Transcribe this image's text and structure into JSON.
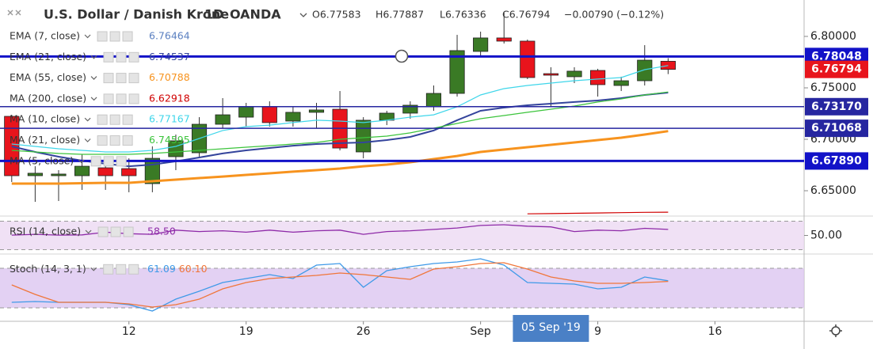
{
  "header": {
    "title": "U.S. Dollar / Danish Krone",
    "interval": "1D",
    "source": "OANDA",
    "open": "O6.77583",
    "high": "H6.77887",
    "low": "L6.76336",
    "close": "C6.76794",
    "change": "−0.00790 (−0.12%)"
  },
  "chart_data": [
    {
      "type": "candlestick",
      "up_color": "#3a7a25",
      "down_color": "#e8141c",
      "open": [
        6.7223,
        6.6646,
        6.6646,
        6.6646,
        6.6723,
        6.6715,
        6.6569,
        6.6831,
        6.6869,
        6.7146,
        6.7215,
        6.7315,
        6.7177,
        6.7262,
        6.7292,
        6.6877,
        6.7185,
        6.7254,
        6.7315,
        6.7446,
        6.7854,
        6.7985,
        6.7954,
        6.7638,
        6.7608,
        6.7669,
        6.7523,
        6.7569,
        6.77583
      ],
      "high": [
        6.7238,
        6.6738,
        6.67,
        6.6854,
        6.6815,
        6.6815,
        6.6931,
        6.7046,
        6.7215,
        6.74,
        6.7354,
        6.7369,
        6.7315,
        6.7354,
        6.7469,
        6.7215,
        6.7277,
        6.7369,
        6.7523,
        6.8015,
        6.8046,
        6.8231,
        6.7969,
        6.77,
        6.77,
        6.7685,
        6.7608,
        6.7915,
        6.77887
      ],
      "low": [
        6.6585,
        6.6392,
        6.64,
        6.6508,
        6.6508,
        6.6485,
        6.6485,
        6.67,
        6.6831,
        6.7108,
        6.7123,
        6.7123,
        6.7123,
        6.7108,
        6.6892,
        6.6815,
        6.7138,
        6.72,
        6.7277,
        6.7415,
        6.7815,
        6.7931,
        6.7585,
        6.7315,
        6.7546,
        6.7415,
        6.7469,
        6.7523,
        6.76336
      ],
      "close": [
        6.6646,
        6.667,
        6.6662,
        6.6738,
        6.6646,
        6.6646,
        6.6815,
        6.6985,
        6.7146,
        6.7238,
        6.7315,
        6.7162,
        6.7262,
        6.7285,
        6.6915,
        6.7185,
        6.7254,
        6.7331,
        6.7446,
        6.7862,
        6.7985,
        6.7954,
        6.76,
        6.7623,
        6.7662,
        6.7531,
        6.7569,
        6.7769,
        6.76794
      ],
      "ylim": [
        6.62615,
        6.83538
      ],
      "yticks": [
        {
          "value": 6.65,
          "label": "6.65000"
        },
        {
          "value": 6.7,
          "label": "6.70000"
        },
        {
          "value": 6.75,
          "label": "6.75000"
        },
        {
          "value": 6.8,
          "label": "6.80000"
        }
      ],
      "xlim": [
        -0.5,
        33.8
      ],
      "xticks": [
        {
          "value": 5,
          "label": "12"
        },
        {
          "value": 10,
          "label": "19"
        },
        {
          "value": 15,
          "label": "26"
        },
        {
          "value": 20,
          "label": "Sep"
        },
        {
          "value": 25,
          "label": "9"
        },
        {
          "value": 30,
          "label": "16"
        }
      ],
      "crosshair": {
        "x": 23,
        "label": "05 Sep '19"
      },
      "levels": [
        {
          "value": 6.78048,
          "label": "6.78048",
          "emphasis": true,
          "color": "#1212c8"
        },
        {
          "value": 6.7317,
          "label": "6.73170",
          "emphasis": false,
          "color": "#2626a0"
        },
        {
          "value": 6.71068,
          "label": "6.71068",
          "emphasis": false,
          "color": "#2626a0"
        },
        {
          "value": 6.6789,
          "label": "6.67890",
          "emphasis": true,
          "color": "#1212c8"
        }
      ],
      "last_price": {
        "value": 6.76794,
        "label": "6.76794",
        "color": "#e8141c"
      },
      "indicators": [
        {
          "name": "EMA (7, close)",
          "last": "6.76464",
          "color": "#5a7fc0"
        },
        {
          "name": "EMA (21, close)",
          "last": "6.74537",
          "color": "#34449c",
          "values": [
            6.6931,
            6.6877,
            6.6831,
            6.6792,
            6.6762,
            6.6738,
            6.6754,
            6.6785,
            6.6823,
            6.6862,
            6.6892,
            6.6915,
            6.6938,
            6.6954,
            6.6962,
            6.6969,
            6.6992,
            6.7023,
            6.7085,
            6.7185,
            6.7277,
            6.7308,
            6.7331,
            6.7346,
            6.7362,
            6.7377,
            6.74,
            6.7431,
            6.7454
          ]
        },
        {
          "name": "EMA (55, close)",
          "last": "6.70788",
          "color": "#f7931e",
          "values": [
            6.6569,
            6.6569,
            6.6569,
            6.6573,
            6.6577,
            6.6577,
            6.6592,
            6.6608,
            6.6623,
            6.6638,
            6.6654,
            6.6669,
            6.6685,
            6.67,
            6.6715,
            6.6738,
            6.6754,
            6.6777,
            6.6808,
            6.6838,
            6.6877,
            6.69,
            6.6923,
            6.6946,
            6.6969,
            6.6992,
            6.7015,
            6.7046,
            6.7079
          ]
        },
        {
          "name": "MA (200, close)",
          "last": "6.62918",
          "color": "#d00000",
          "values": [
            null,
            null,
            null,
            null,
            null,
            null,
            null,
            null,
            null,
            null,
            null,
            null,
            null,
            null,
            null,
            null,
            null,
            null,
            null,
            null,
            null,
            null,
            6.6275,
            6.6278,
            6.6281,
            6.6284,
            6.6287,
            6.629,
            6.62918
          ]
        },
        {
          "name": "MA (10, close)",
          "last": "6.77167",
          "color": "#3fd6ea",
          "values": [
            6.6954,
            6.6931,
            6.6908,
            6.6892,
            6.6877,
            6.6877,
            6.6892,
            6.6931,
            6.7008,
            6.7085,
            6.7123,
            6.7138,
            6.7162,
            6.7185,
            6.7177,
            6.7162,
            6.7185,
            6.7215,
            6.7238,
            6.7315,
            6.7431,
            6.7492,
            6.7523,
            6.7546,
            6.7569,
            6.7585,
            6.76,
            6.7677,
            6.7717
          ]
        },
        {
          "name": "MA (21, close)",
          "last": "6.74595",
          "color": "#3cc43c",
          "values": [
            6.6892,
            6.6877,
            6.6862,
            6.6854,
            6.6854,
            6.6854,
            6.6862,
            6.6877,
            6.6892,
            6.6908,
            6.6923,
            6.6938,
            6.6954,
            6.6969,
            6.7,
            6.7015,
            6.7031,
            6.7062,
            6.7108,
            6.7154,
            6.72,
            6.7231,
            6.7262,
            6.7292,
            6.7323,
            6.7362,
            6.7392,
            6.7431,
            6.746
          ]
        },
        {
          "name": "MA (5, close)",
          "color": "#2a3fd0"
        }
      ]
    },
    {
      "type": "line",
      "title": "RSI (14, close)",
      "series": [
        {
          "color": "#8e2aa8",
          "last": "58.50",
          "values": [
            50.5,
            51.5,
            50.5,
            50.8,
            54.5,
            52.5,
            51.5,
            57.5,
            55.5,
            56.5,
            54.5,
            57.5,
            54.5,
            56.5,
            57.5,
            51.5,
            55.5,
            56.5,
            58.5,
            60.5,
            64,
            65,
            63,
            62,
            55.5,
            57.5,
            56.5,
            60,
            58.5
          ]
        }
      ],
      "ylim": [
        25,
        75
      ],
      "yticks": [
        {
          "value": 50,
          "label": "50.00"
        }
      ],
      "band": [
        30,
        70
      ],
      "band_color": "#ecd9f2"
    },
    {
      "type": "line",
      "title": "Stoch (14, 3, 1)",
      "series": [
        {
          "color": "#3f9ae8",
          "last": "61.09",
          "values": [
            28.4,
            29.6,
            28.4,
            28.4,
            28.4,
            24.8,
            15.2,
            33.2,
            45.2,
            58.4,
            64.4,
            70.4,
            64.4,
            84.8,
            87.2,
            51.2,
            76.4,
            82.4,
            87.2,
            89.6,
            94.4,
            84.8,
            58.4,
            57.2,
            56,
            48.8,
            51.2,
            66.8,
            61.09
          ]
        },
        {
          "color": "#f0763a",
          "last": "60.10",
          "values": [
            54.8,
            40.4,
            28.4,
            28.4,
            28.4,
            26,
            21.2,
            24.8,
            33.2,
            48.8,
            58.4,
            64.4,
            66.8,
            69.2,
            72.8,
            70.4,
            66.8,
            63.2,
            78.8,
            82.4,
            87.2,
            88.4,
            78.8,
            66.8,
            60.8,
            57.2,
            57.2,
            58.4,
            60.1
          ]
        }
      ],
      "ylim": [
        0,
        100
      ],
      "band": [
        20,
        80
      ],
      "band_color": "#dcc6f0"
    }
  ]
}
